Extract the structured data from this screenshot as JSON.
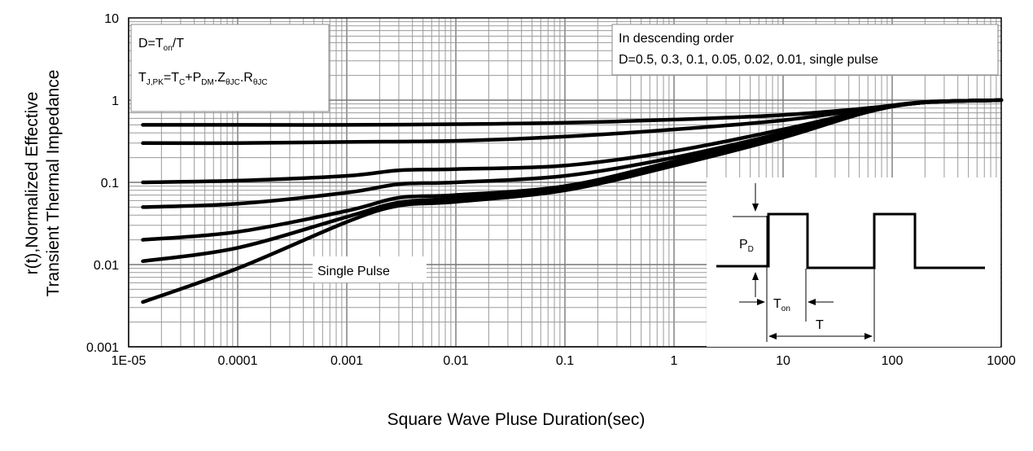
{
  "chart_data": {
    "type": "line",
    "xlabel": "Square Wave Pluse Duration(sec)",
    "ylabel_line1": "r(t),Normalized Effective",
    "ylabel_line2": "Transient Thermal Impedance",
    "x_scale": "log",
    "y_scale": "log",
    "xlim": [
      1e-05,
      1000
    ],
    "ylim": [
      0.001,
      10
    ],
    "grid": true,
    "x_ticks": [
      "1E-05",
      "0.0001",
      "0.001",
      "0.01",
      "0.1",
      "1",
      "10",
      "100",
      "1000"
    ],
    "y_ticks": [
      "0.001",
      "0.01",
      "0.1",
      "1",
      "10"
    ],
    "annotations": {
      "duty_formula": {
        "main": "D=T",
        "sub": "on",
        "tail": "/T"
      },
      "tj_formula": {
        "t": "T",
        "t_sub": "J,PK",
        "eq": "=T",
        "c_sub": "C",
        "plus": "+P",
        "dm_sub": "DM",
        "z": ".Z",
        "z_sub": "θJC",
        "r": ".R",
        "r_sub": "θJC"
      },
      "order_title": "In descending order",
      "order_values": "D=0.5, 0.3, 0.1, 0.05, 0.02, 0.01, single pulse",
      "single_pulse": "Single Pulse",
      "pd_label": "P",
      "pd_sub": "D",
      "ton_label": "T",
      "ton_sub": "on",
      "t_label": "T"
    },
    "series": [
      {
        "x": [
          1.35e-05,
          0.0001,
          0.001,
          0.01,
          0.1,
          1,
          10,
          60,
          200,
          1000
        ],
        "values": [
          0.5,
          0.5,
          0.5,
          0.51,
          0.53,
          0.58,
          0.66,
          0.8,
          0.95,
          1.0
        ]
      },
      {
        "x": [
          1.35e-05,
          0.0001,
          0.001,
          0.01,
          0.1,
          1,
          10,
          60,
          200,
          1000
        ],
        "values": [
          0.3,
          0.3,
          0.31,
          0.32,
          0.36,
          0.44,
          0.57,
          0.78,
          0.94,
          1.0
        ]
      },
      {
        "x": [
          1.35e-05,
          0.0001,
          0.001,
          0.003,
          0.01,
          0.1,
          1,
          10,
          60,
          200,
          1000
        ],
        "values": [
          0.1,
          0.105,
          0.12,
          0.14,
          0.145,
          0.16,
          0.24,
          0.44,
          0.75,
          0.94,
          1.0
        ]
      },
      {
        "x": [
          1.35e-05,
          0.0001,
          0.001,
          0.003,
          0.01,
          0.1,
          1,
          10,
          60,
          200,
          1000
        ],
        "values": [
          0.05,
          0.055,
          0.075,
          0.095,
          0.1,
          0.12,
          0.2,
          0.4,
          0.74,
          0.94,
          1.0
        ]
      },
      {
        "x": [
          1.35e-05,
          0.0001,
          0.001,
          0.003,
          0.01,
          0.1,
          1,
          10,
          60,
          200,
          1000
        ],
        "values": [
          0.02,
          0.025,
          0.045,
          0.065,
          0.07,
          0.09,
          0.18,
          0.37,
          0.73,
          0.94,
          1.0
        ]
      },
      {
        "x": [
          1.35e-05,
          0.0001,
          0.001,
          0.003,
          0.01,
          0.1,
          1,
          10,
          60,
          200,
          1000
        ],
        "values": [
          0.011,
          0.016,
          0.038,
          0.057,
          0.064,
          0.085,
          0.17,
          0.36,
          0.72,
          0.94,
          1.0
        ]
      },
      {
        "x": [
          1.35e-05,
          0.0001,
          0.001,
          0.003,
          0.01,
          0.1,
          1,
          10,
          60,
          200,
          1000
        ],
        "values": [
          0.0035,
          0.009,
          0.033,
          0.052,
          0.058,
          0.08,
          0.16,
          0.35,
          0.72,
          0.94,
          1.0
        ]
      }
    ],
    "pulse_waveform": {
      "x": [
        10,
        10,
        20,
        20,
        120,
        120,
        240,
        240,
        800
      ]
    }
  }
}
